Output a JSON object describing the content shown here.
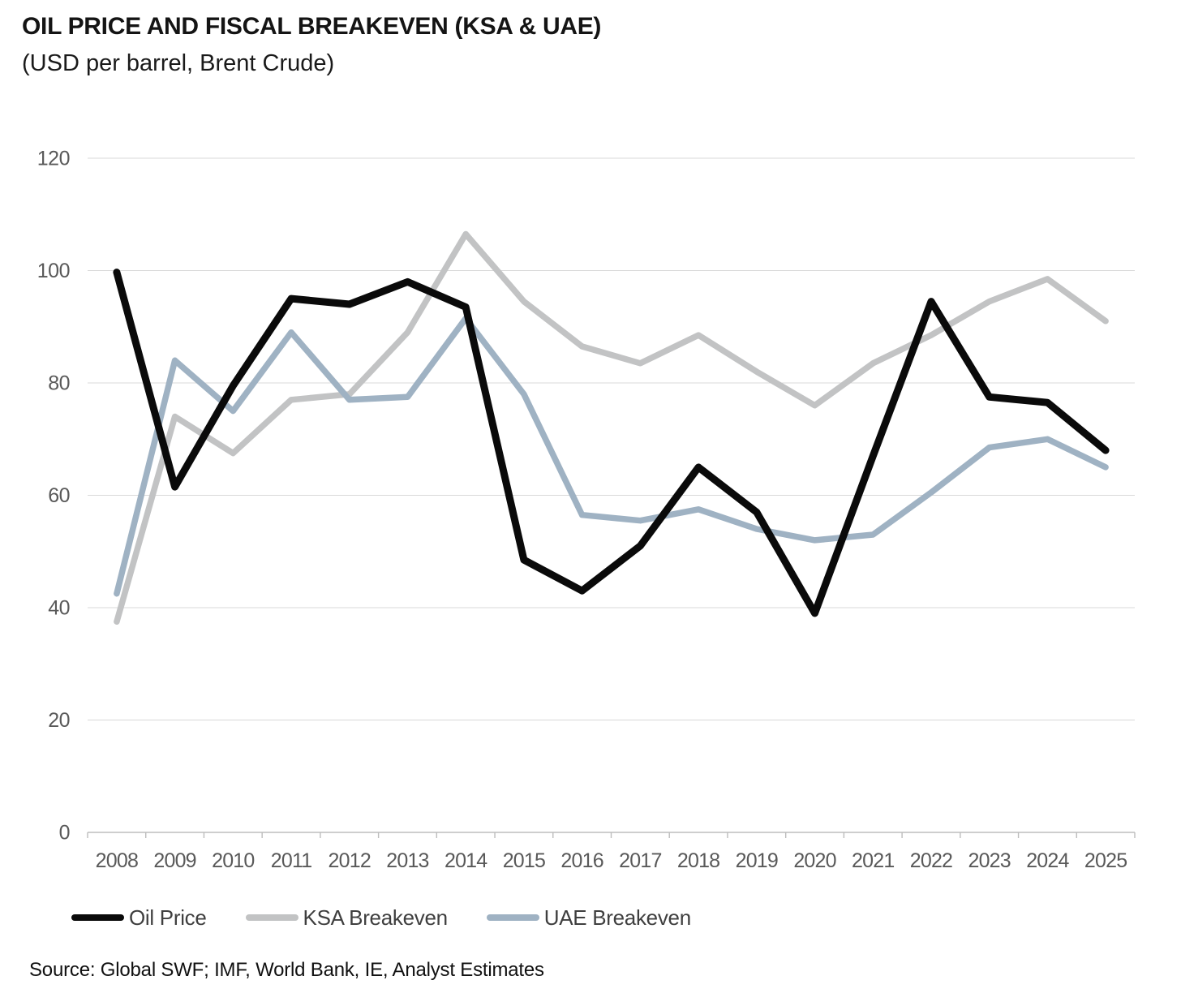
{
  "header": {
    "title": "OIL PRICE AND FISCAL BREAKEVEN (KSA & UAE)",
    "subtitle": "(USD per barrel, Brent Crude)"
  },
  "source": "Source: Global SWF; IMF, World Bank, IE, Analyst Estimates",
  "colors": {
    "oil": "#0a0a0a",
    "ksa": "#c2c3c4",
    "uae": "#9fb2c3",
    "gridline": "#d9d9d9",
    "axis_line": "#bdbdbd",
    "axis_label": "#595959"
  },
  "legend": {
    "items": [
      {
        "label": "Oil Price",
        "color_key": "oil"
      },
      {
        "label": "KSA Breakeven",
        "color_key": "ksa"
      },
      {
        "label": "UAE Breakeven",
        "color_key": "uae"
      }
    ]
  },
  "chart_data": {
    "type": "line",
    "title": "OIL PRICE AND FISCAL BREAKEVEN (KSA & UAE)",
    "subtitle": "(USD per barrel, Brent Crude)",
    "categories": [
      "2008",
      "2009",
      "2010",
      "2011",
      "2012",
      "2013",
      "2014",
      "2015",
      "2016",
      "2017",
      "2018",
      "2019",
      "2020",
      "2021",
      "2022",
      "2023",
      "2024",
      "2025"
    ],
    "series": [
      {
        "name": "KSA Breakeven",
        "color_key": "ksa",
        "values": [
          37.5,
          74,
          67.5,
          77,
          78,
          89,
          106.5,
          94.5,
          86.5,
          83.5,
          88.5,
          82,
          76,
          83.5,
          88.5,
          94.5,
          98.5,
          91
        ]
      },
      {
        "name": "UAE Breakeven",
        "color_key": "uae",
        "values": [
          42.5,
          84,
          75,
          89,
          77,
          77.5,
          91.5,
          78,
          56.5,
          55.5,
          57.5,
          54,
          52,
          53,
          60.5,
          68.5,
          70,
          65
        ]
      },
      {
        "name": "Oil Price",
        "color_key": "oil",
        "values": [
          99.7,
          61.5,
          79.5,
          95,
          94,
          98,
          93.5,
          48.5,
          43,
          51,
          65,
          57,
          39,
          67,
          94.5,
          77.5,
          76.5,
          68
        ]
      }
    ],
    "xlabel": "",
    "ylabel": "",
    "ylim": [
      0,
      120
    ],
    "y_ticks": [
      0,
      20,
      40,
      60,
      80,
      100,
      120
    ],
    "grid": "horizontal",
    "legend_position": "bottom-left"
  }
}
